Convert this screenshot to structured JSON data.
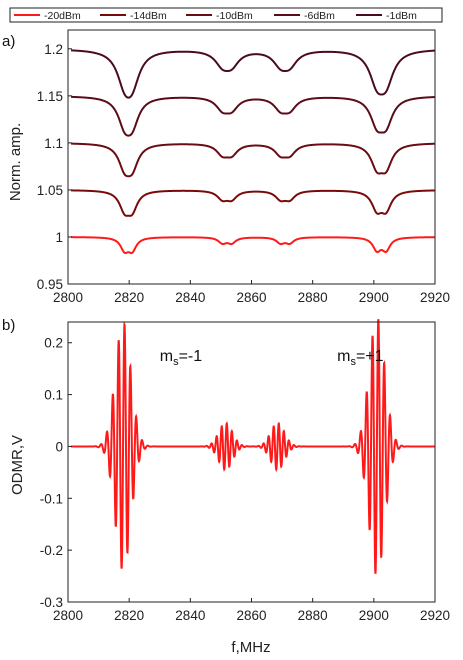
{
  "chart_data": [
    {
      "panel_label": "a)",
      "type": "line",
      "xlabel": "",
      "ylabel": "Norm. amp.",
      "xlim": [
        2800,
        2920
      ],
      "ylim": [
        0.95,
        1.22
      ],
      "xticks": [
        2800,
        2820,
        2840,
        2860,
        2880,
        2900,
        2920
      ],
      "yticks": [
        0.95,
        1,
        1.05,
        1.1,
        1.15,
        1.2
      ],
      "ytick_labels": [
        "0.95",
        "1",
        "1.05",
        "1.1",
        "1.15",
        "1.2"
      ],
      "legend_position": "top",
      "series": [
        {
          "name": "-20dBm",
          "color": "#ff1a1a",
          "baseline": 1.0,
          "depth_scale": 1.0
        },
        {
          "name": "-14dBm",
          "color": "#7a0a0a",
          "baseline": 1.05,
          "depth_scale": 1.45
        },
        {
          "name": "-10dBm",
          "color": "#6a0c14",
          "baseline": 1.1,
          "depth_scale": 1.75
        },
        {
          "name": "-6dBm",
          "color": "#5a0c18",
          "baseline": 1.15,
          "depth_scale": 2.0
        },
        {
          "name": "-1dBm",
          "color": "#4a0c1c",
          "baseline": 1.2,
          "depth_scale": 2.35
        }
      ],
      "dips": [
        {
          "center": 2818.5,
          "width": 1.6,
          "depth": 0.013
        },
        {
          "center": 2821.0,
          "width": 1.6,
          "depth": 0.013
        },
        {
          "center": 2850.5,
          "width": 1.6,
          "depth": 0.006
        },
        {
          "center": 2853.5,
          "width": 1.6,
          "depth": 0.006
        },
        {
          "center": 2869.5,
          "width": 1.6,
          "depth": 0.006
        },
        {
          "center": 2872.5,
          "width": 1.6,
          "depth": 0.006
        },
        {
          "center": 2901.0,
          "width": 1.6,
          "depth": 0.013
        },
        {
          "center": 2904.0,
          "width": 1.6,
          "depth": 0.013
        }
      ]
    },
    {
      "panel_label": "b)",
      "type": "line",
      "xlabel": "f,MHz",
      "ylabel": "ODMR,V",
      "xlim": [
        2800,
        2920
      ],
      "ylim": [
        -0.3,
        0.24
      ],
      "xticks": [
        2800,
        2820,
        2840,
        2860,
        2880,
        2900,
        2920
      ],
      "yticks": [
        -0.3,
        -0.2,
        -0.1,
        0,
        0.1,
        0.2
      ],
      "ytick_labels": [
        "-0.3",
        "-0.2",
        "-0.1",
        "0",
        "0.1",
        "0.2"
      ],
      "series": [
        {
          "name": "",
          "color": "#ff1a1a"
        }
      ],
      "groups": [
        {
          "center": 2818.0,
          "amplitude": 0.24,
          "envelope": 3.6,
          "freq": 0.52
        },
        {
          "center": 2851.5,
          "amplitude": 0.045,
          "envelope": 3.2,
          "freq": 0.6
        },
        {
          "center": 2868.5,
          "amplitude": 0.045,
          "envelope": 3.2,
          "freq": 0.6
        },
        {
          "center": 2901.0,
          "amplitude": 0.25,
          "envelope": 3.6,
          "freq": 0.52
        }
      ],
      "annotations": [
        {
          "main": "m",
          "sub": "s",
          "rest": "=-1",
          "x": 2830,
          "y": 0.165
        },
        {
          "main": "m",
          "sub": "s",
          "rest": "=+1",
          "x": 2888,
          "y": 0.165
        }
      ]
    }
  ]
}
